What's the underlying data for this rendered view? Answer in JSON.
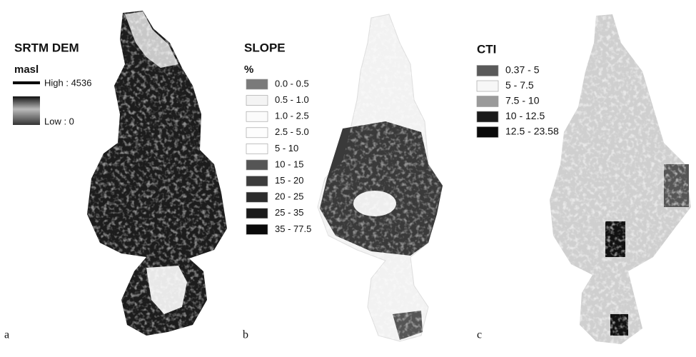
{
  "panels": [
    {
      "label": "a",
      "title": "SRTM DEM",
      "unit": "masl",
      "legend": [
        "High : 4536",
        "Low : 0"
      ]
    },
    {
      "label": "b",
      "title": "SLOPE",
      "unit": "%",
      "legend": [
        {
          "text": "0.0 - 0.5",
          "color": "#7a7a7a"
        },
        {
          "text": "0.5 - 1.0",
          "color": "#f4f4f4"
        },
        {
          "text": "1.0 - 2.5",
          "color": "#fbfbfb"
        },
        {
          "text": "2.5 - 5.0",
          "color": "#fdfdfd"
        },
        {
          "text": "5 - 10",
          "color": "#ffffff"
        },
        {
          "text": "10 - 15",
          "color": "#555555"
        },
        {
          "text": "15 - 20",
          "color": "#3c3c3c"
        },
        {
          "text": "20 - 25",
          "color": "#2c2c2c"
        },
        {
          "text": "25 - 35",
          "color": "#1a1a1a"
        },
        {
          "text": "35 - 77.5",
          "color": "#0a0a0a"
        }
      ]
    },
    {
      "label": "c",
      "title": "CTI",
      "legend": [
        {
          "text": "0.37 - 5",
          "color": "#5a5a5a"
        },
        {
          "text": "5 - 7.5",
          "color": "#f7f7f7"
        },
        {
          "text": "7.5 - 10",
          "color": "#9a9a9a"
        },
        {
          "text": "10 - 12.5",
          "color": "#1a1a1a"
        },
        {
          "text": "12.5 - 23.58",
          "color": "#0a0a0a"
        }
      ]
    }
  ]
}
